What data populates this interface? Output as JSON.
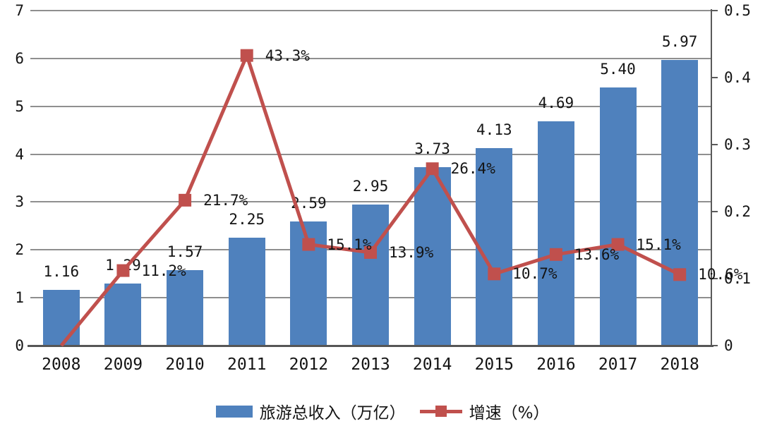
{
  "chart_data": {
    "type": "bar",
    "subtype": "combo-bar-line-dual-axis",
    "title": "",
    "categories": [
      "2008",
      "2009",
      "2010",
      "2011",
      "2012",
      "2013",
      "2014",
      "2015",
      "2016",
      "2017",
      "2018"
    ],
    "series": [
      {
        "name": "旅游总收入（万亿）",
        "type": "bar",
        "axis": "left",
        "color": "#4F81BD",
        "values": [
          1.16,
          1.29,
          1.57,
          2.25,
          2.59,
          2.95,
          3.73,
          4.13,
          4.69,
          5.4,
          5.97
        ],
        "labels": [
          "1.16",
          "1.29",
          "1.57",
          "2.25",
          "2.59",
          "2.95",
          "3.73",
          "4.13",
          "4.69",
          "5.40",
          "5.97"
        ]
      },
      {
        "name": "增速（%）",
        "type": "line",
        "axis": "right",
        "color": "#C0504D",
        "values": [
          0,
          0.112,
          0.217,
          0.433,
          0.151,
          0.139,
          0.264,
          0.107,
          0.136,
          0.151,
          0.106
        ],
        "labels": [
          "",
          "11.2%",
          "21.7%",
          "43.3%",
          "15.1%",
          "13.9%",
          "26.4%",
          "10.7%",
          "13.6%",
          "15.1%",
          "10.6%"
        ]
      }
    ],
    "left_axis": {
      "min": 0,
      "max": 7,
      "ticks": [
        "0",
        "1",
        "2",
        "3",
        "4",
        "5",
        "6",
        "7"
      ]
    },
    "right_axis": {
      "min": 0,
      "max": 0.5,
      "ticks": [
        "0",
        "0.1",
        "0.2",
        "0.3",
        "0.4",
        "0.5"
      ]
    },
    "legend": [
      {
        "label": "旅游总收入（万亿）",
        "color": "#4F81BD",
        "marker": "bar"
      },
      {
        "label": "增速（%）",
        "color": "#C0504D",
        "marker": "line-square"
      }
    ],
    "layout": {
      "grid": "horizontal",
      "legend_position": "bottom",
      "background": "#ffffff"
    },
    "colors": {
      "bar": "#4F81BD",
      "line": "#C0504D",
      "grid": "#8f8f8f",
      "axis": "#565656",
      "text": "#141414"
    }
  }
}
